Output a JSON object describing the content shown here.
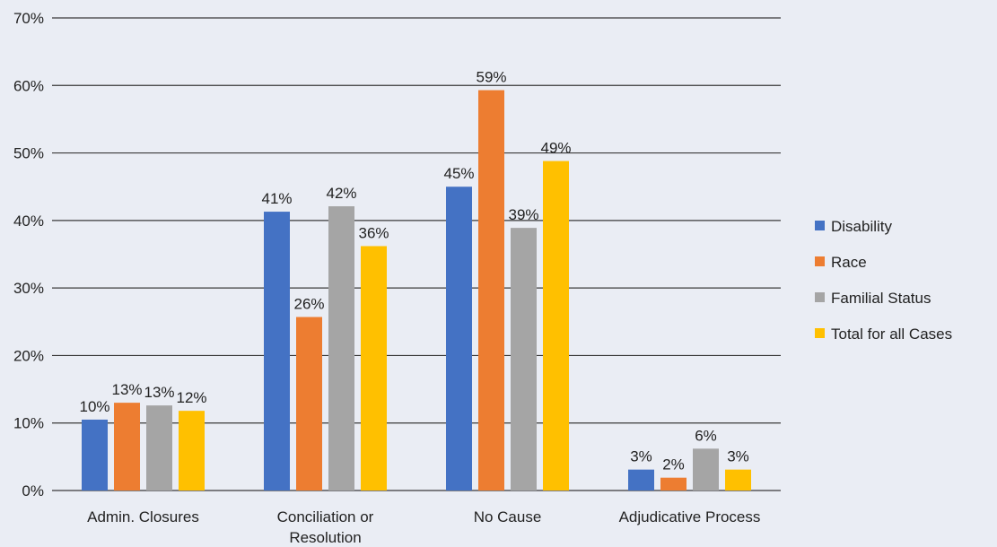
{
  "chart_data": {
    "type": "bar",
    "categories": [
      "Admin. Closures",
      "Conciliation or Resolution",
      "No Cause",
      "Adjudicative Process"
    ],
    "category_lines": [
      [
        "Admin. Closures"
      ],
      [
        "Conciliation or",
        "Resolution"
      ],
      [
        "No Cause"
      ],
      [
        "Adjudicative Process"
      ]
    ],
    "series": [
      {
        "name": "Disability",
        "color": "#4472c4",
        "values": [
          10.5,
          41.3,
          45.0,
          3.1
        ],
        "labels": [
          "10%",
          "41%",
          "45%",
          "3%"
        ]
      },
      {
        "name": "Race",
        "color": "#ed7d31",
        "values": [
          13.0,
          25.7,
          59.3,
          1.9
        ],
        "labels": [
          "13%",
          "26%",
          "59%",
          "2%"
        ]
      },
      {
        "name": "Familial Status",
        "color": "#a5a5a5",
        "values": [
          12.6,
          42.1,
          38.9,
          6.2
        ],
        "labels": [
          "13%",
          "42%",
          "39%",
          "6%"
        ]
      },
      {
        "name": "Total for all Cases",
        "color": "#ffc000",
        "values": [
          11.8,
          36.2,
          48.8,
          3.1
        ],
        "labels": [
          "12%",
          "36%",
          "49%",
          "3%"
        ]
      }
    ],
    "y_ticks": [
      "0%",
      "10%",
      "20%",
      "30%",
      "40%",
      "50%",
      "60%",
      "70%"
    ],
    "ylim": [
      0,
      70
    ],
    "grid": true,
    "legend": "right",
    "title": "",
    "xlabel": "",
    "ylabel": ""
  }
}
